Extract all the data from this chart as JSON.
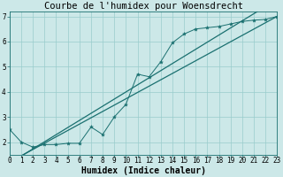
{
  "title": "Courbe de l'humidex pour Woensdrecht",
  "xlabel": "Humidex (Indice chaleur)",
  "bg_color": "#cce8e8",
  "grid_color": "#99cccc",
  "line_color": "#1a7070",
  "x_data": [
    0,
    1,
    2,
    3,
    4,
    5,
    6,
    7,
    8,
    9,
    10,
    11,
    12,
    13,
    14,
    15,
    16,
    17,
    18,
    19,
    20,
    21,
    22,
    23
  ],
  "y_data": [
    2.5,
    2.0,
    1.8,
    1.9,
    1.9,
    1.95,
    1.95,
    2.6,
    2.3,
    3.0,
    3.5,
    4.7,
    4.6,
    5.2,
    5.95,
    6.3,
    6.5,
    6.55,
    6.6,
    6.7,
    6.8,
    6.85,
    6.88,
    7.0
  ],
  "reg_line1": [
    1.55,
    7.05
  ],
  "reg_line1_x": [
    0,
    23
  ],
  "reg_line2": [
    1.2,
    7.0
  ],
  "reg_line2_x": [
    0,
    23
  ],
  "xlim": [
    0,
    23
  ],
  "ylim": [
    1.5,
    7.2
  ],
  "yticks": [
    2,
    3,
    4,
    5,
    6,
    7
  ],
  "xticks": [
    0,
    1,
    2,
    3,
    4,
    5,
    6,
    7,
    8,
    9,
    10,
    11,
    12,
    13,
    14,
    15,
    16,
    17,
    18,
    19,
    20,
    21,
    22,
    23
  ],
  "tick_fontsize": 5.5,
  "xlabel_fontsize": 7.0,
  "title_fontsize": 7.5
}
